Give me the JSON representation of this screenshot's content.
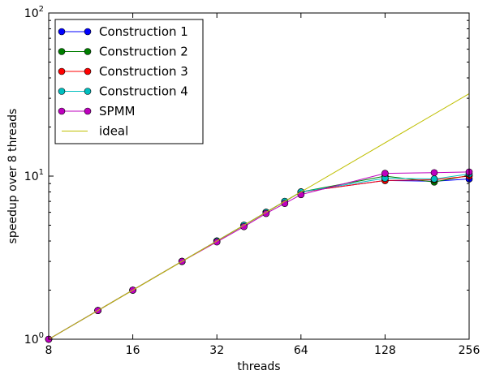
{
  "chart_data": {
    "type": "line",
    "title": "",
    "xlabel": "threads",
    "ylabel": "speedup over 8 threads",
    "xscale": "log2",
    "yscale": "log10",
    "xlim": [
      8,
      256
    ],
    "ylim": [
      1,
      100
    ],
    "x_ticks": [
      8,
      16,
      32,
      64,
      128,
      256
    ],
    "x_tick_labels": [
      "8",
      "16",
      "32",
      "64",
      "128",
      "256"
    ],
    "y_ticks": [
      1,
      10,
      100
    ],
    "y_tick_labels": [
      {
        "base": "10",
        "exp": "0"
      },
      {
        "base": "10",
        "exp": "1"
      },
      {
        "base": "10",
        "exp": "2"
      }
    ],
    "grid": false,
    "legend_position": "top-left",
    "series": [
      {
        "name": "Construction 1",
        "color": "#0000ff",
        "marker": "circle",
        "x": [
          8,
          12,
          16,
          24,
          32,
          40,
          48,
          56,
          64,
          128,
          192,
          256
        ],
        "y": [
          1.0,
          1.5,
          2.0,
          3.0,
          4.0,
          5.0,
          6.0,
          7.0,
          8.0,
          9.4,
          9.3,
          9.6
        ]
      },
      {
        "name": "Construction 2",
        "color": "#007f00",
        "marker": "circle",
        "x": [
          8,
          12,
          16,
          24,
          32,
          40,
          48,
          56,
          64,
          128,
          192,
          256
        ],
        "y": [
          1.0,
          1.5,
          2.0,
          3.0,
          4.0,
          5.0,
          6.0,
          7.0,
          8.0,
          10.0,
          9.2,
          10.1
        ]
      },
      {
        "name": "Construction 3",
        "color": "#ff0000",
        "marker": "circle",
        "x": [
          8,
          12,
          16,
          24,
          32,
          40,
          48,
          56,
          64,
          128,
          192,
          256
        ],
        "y": [
          1.0,
          1.5,
          2.0,
          3.0,
          4.0,
          5.0,
          6.0,
          7.0,
          8.0,
          9.4,
          9.5,
          10.0
        ]
      },
      {
        "name": "Construction 4",
        "color": "#00bfbf",
        "marker": "circle",
        "x": [
          8,
          12,
          16,
          24,
          32,
          40,
          48,
          56,
          64,
          128,
          192,
          256
        ],
        "y": [
          1.0,
          1.5,
          2.0,
          3.0,
          4.0,
          5.0,
          6.0,
          7.0,
          8.0,
          9.7,
          9.6,
          10.3
        ]
      },
      {
        "name": "SPMM",
        "color": "#bf00bf",
        "marker": "circle",
        "x": [
          8,
          12,
          16,
          24,
          32,
          40,
          48,
          56,
          64,
          128,
          192,
          256
        ],
        "y": [
          1.0,
          1.5,
          2.0,
          3.0,
          3.95,
          4.9,
          5.9,
          6.8,
          7.7,
          10.4,
          10.5,
          10.6
        ]
      },
      {
        "name": "ideal",
        "color": "#bfbf00",
        "marker": "none",
        "x": [
          8,
          256
        ],
        "y": [
          1,
          32
        ]
      }
    ]
  }
}
